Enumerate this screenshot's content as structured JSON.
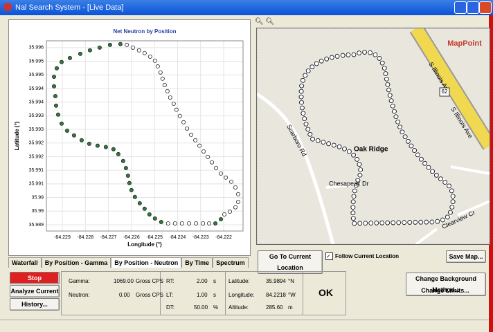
{
  "window": {
    "title": "Nal Search System - [Live Data]"
  },
  "chart_data": {
    "type": "scatter",
    "title": "Net Neutron by Position",
    "x_label": "Longitude (°)",
    "y_label": "Latitude (°)",
    "series": [
      {
        "color": "#2e7d3a",
        "x": [
          -84.22648,
          -84.22693,
          -84.22738,
          -84.2278,
          -84.22822,
          -84.22867,
          -84.22903,
          -84.22924,
          -84.22936,
          -84.22936,
          -84.2293,
          -84.22927,
          -84.22918,
          -84.22903,
          -84.22879,
          -84.22849,
          -84.22816,
          -84.22783,
          -84.22747,
          -84.22711,
          -84.22678,
          -84.22657,
          -84.22636,
          -84.22624,
          -84.22615,
          -84.22609,
          -84.226,
          -84.22585,
          -84.22564,
          -84.22543,
          -84.22522,
          -84.22498,
          -84.22471,
          -84.22236,
          -84.22212
        ],
        "y": [
          35.99563,
          35.9956,
          35.9955,
          35.9954,
          35.99527,
          35.99512,
          35.99497,
          35.99474,
          35.99443,
          35.99408,
          35.99372,
          35.99337,
          35.99304,
          35.99271,
          35.99245,
          35.99228,
          35.9921,
          35.99197,
          35.9919,
          35.99185,
          35.99177,
          35.99159,
          35.99134,
          35.99108,
          35.9908,
          35.99053,
          35.99027,
          35.99002,
          35.98979,
          35.98959,
          35.98938,
          35.98923,
          35.9891,
          35.98905,
          35.9892
        ]
      },
      {
        "color": "#ffffff",
        "x": [
          -84.2262,
          -84.22594,
          -84.22567,
          -84.22543,
          -84.22519,
          -84.22498,
          -84.22486,
          -84.22474,
          -84.22465,
          -84.22456,
          -84.22444,
          -84.22432,
          -84.22417,
          -84.22405,
          -84.2239,
          -84.22374,
          -84.22359,
          -84.22341,
          -84.22323,
          -84.22305,
          -84.22287,
          -84.22269,
          -84.22251,
          -84.22233,
          -84.22212,
          -84.22191,
          -84.22167,
          -84.22149,
          -84.22137,
          -84.22137,
          -84.22149,
          -84.22173,
          -84.22197,
          -84.22441,
          -84.22411,
          -84.22381,
          -84.2235,
          -84.2232,
          -84.2229,
          -84.22263
        ],
        "y": [
          35.9956,
          35.9955,
          35.9954,
          35.9953,
          35.99517,
          35.99502,
          35.99481,
          35.99459,
          35.99436,
          35.99413,
          35.9939,
          35.99367,
          35.99344,
          35.99322,
          35.99299,
          35.99276,
          35.99253,
          35.9923,
          35.9921,
          35.9919,
          35.99169,
          35.99149,
          35.99129,
          35.99108,
          35.99088,
          35.99073,
          35.99058,
          35.99037,
          35.99012,
          35.98984,
          35.98964,
          35.98948,
          35.98938,
          35.98905,
          35.98905,
          35.98905,
          35.98905,
          35.98905,
          35.98905,
          35.98905
        ]
      }
    ],
    "xlim": [
      -84.22969,
      -84.22116
    ],
    "ylim": [
      35.98877,
      35.99575
    ],
    "xticks": [
      -84.229,
      -84.228,
      -84.227,
      -84.226,
      -84.225,
      -84.224,
      -84.223,
      -84.222
    ],
    "yticks": [
      35.989,
      {
        "value": 35.9895,
        "label": "35.99"
      },
      35.99,
      {
        "value": 35.9905,
        "label": "35.991"
      },
      35.991,
      {
        "value": 35.9915,
        "label": "35.992"
      },
      35.992,
      {
        "value": 35.9925,
        "label": "35.993"
      },
      35.993,
      {
        "value": 35.9935,
        "label": "35.994"
      },
      35.994,
      {
        "value": 35.9945,
        "label": "35.995"
      },
      35.995,
      {
        "value": 35.9955,
        "label": "35.996"
      }
    ],
    "grid": true
  },
  "tabs": [
    "Waterfall",
    "By Position - Gamma",
    "By Position - Neutron",
    "By Time",
    "Spectrum"
  ],
  "buttons": {
    "stop": "Stop",
    "analyze": "Analyze Current",
    "history": "History...",
    "goto": "Go To Current Location",
    "follow": "Follow Current Location",
    "save": "Save Map...",
    "background": "Change Background Method...",
    "limits": "Change Limits..."
  },
  "status": {
    "gamma": {
      "label": "Gamma:",
      "value": "1069.00",
      "unit": "Gross CPS"
    },
    "neutron": {
      "label": "Neutron:",
      "value": "0.00",
      "unit": "Gross CPS"
    },
    "rt": {
      "label": "RT:",
      "value": "2.00",
      "unit": "s"
    },
    "lt": {
      "label": "LT:",
      "value": "1.00",
      "unit": "s"
    },
    "dt": {
      "label": "DT:",
      "value": "50.00",
      "unit": "%"
    },
    "latitude": {
      "label": "Latitude:",
      "value": "35.9894",
      "unit": "°N"
    },
    "longitude": {
      "label": "Longitude:",
      "value": "84.2218",
      "unit": "°W"
    },
    "altitude": {
      "label": "Altitude:",
      "value": "285.60",
      "unit": "m"
    },
    "ok": "OK"
  },
  "map": {
    "brand": "MapPoint",
    "roads": [
      "S Illinois Ave",
      "62",
      "S Illinois Ave",
      "Scarboro Rd",
      "Chesapeak Dr",
      "Clearview Cr"
    ],
    "place": "Oak Ridge"
  }
}
